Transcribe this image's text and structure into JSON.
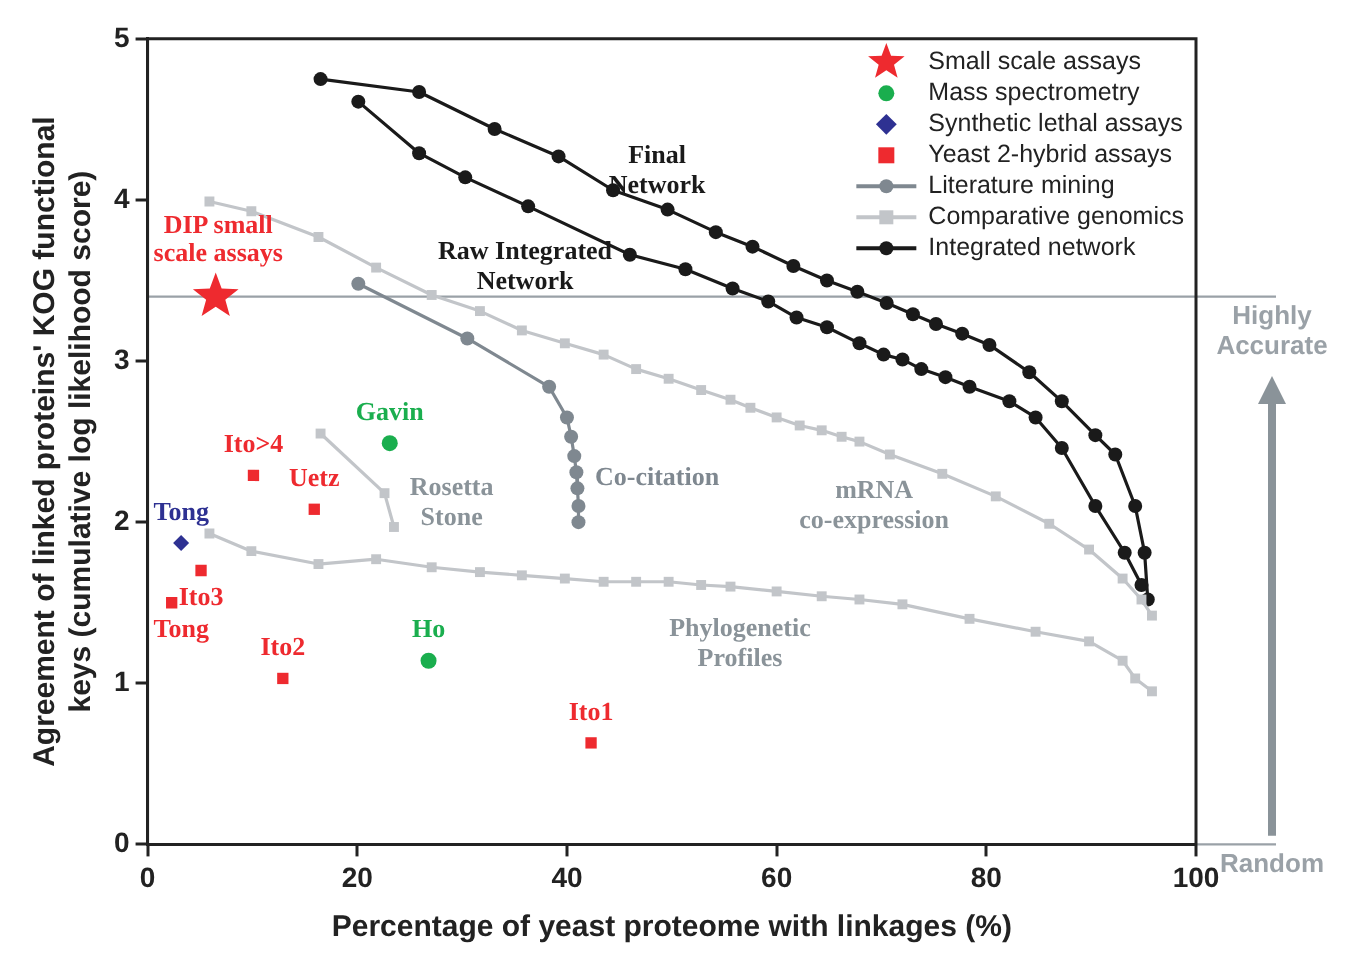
{
  "chart_data": {
    "type": "line",
    "xlabel": "Percentage of yeast proteome with linkages (%)",
    "ylabel": "Agreement of linked proteins' KOG functional\nkeys (cumulative log likelihood score)",
    "xlim": [
      0,
      100
    ],
    "xticks": [
      0,
      20,
      40,
      60,
      80,
      100
    ],
    "ylim": [
      0,
      5
    ],
    "yticks": [
      0,
      1,
      2,
      3,
      4,
      5
    ],
    "grid": false,
    "legend": "top right",
    "series": [
      {
        "name": "Small scale assays",
        "type": "scatter",
        "marker": "star",
        "color": "#ee2a2f",
        "x": [
          6.5
        ],
        "values": [
          3.4
        ],
        "value_labels": [
          "DIP small\nscale assays"
        ]
      },
      {
        "name": "Mass spectrometry",
        "type": "scatter",
        "marker": "circle",
        "color": "#1aae4e",
        "x": [
          23.1,
          26.8
        ],
        "values": [
          2.49,
          1.14
        ],
        "value_labels": [
          "Gavin",
          "Ho"
        ]
      },
      {
        "name": "Synthetic lethal assays",
        "type": "scatter",
        "marker": "diamond",
        "color": "#2e3192",
        "x": [
          3.2
        ],
        "values": [
          1.87
        ],
        "value_labels": [
          "Tong"
        ]
      },
      {
        "name": "Yeast 2-hybrid assays",
        "type": "scatter",
        "marker": "square",
        "color": "#ee2a2f",
        "x": [
          10.1,
          15.9,
          5.1,
          2.3,
          12.9,
          42.3
        ],
        "values": [
          2.29,
          2.08,
          1.7,
          1.5,
          1.03,
          0.63
        ],
        "value_labels": [
          "Ito>4",
          "Uetz",
          "Ito3",
          "Tong",
          "Ito2",
          "Ito1"
        ]
      },
      {
        "name": "Literature mining",
        "marker": "circle",
        "color": "#7f8890",
        "x": [
          20.1,
          30.5,
          38.3,
          40,
          40.4,
          40.7,
          40.9,
          41,
          41.1,
          41.1
        ],
        "values": [
          3.48,
          3.14,
          2.84,
          2.65,
          2.53,
          2.41,
          2.31,
          2.21,
          2.1,
          2.0
        ]
      },
      {
        "name": "Comparative genomics",
        "marker": "square",
        "color": "#c2c5c9",
        "x": [
          16.5,
          22.6,
          23.5
        ],
        "values": [
          2.55,
          2.18,
          1.97
        ]
      },
      {
        "marker": "square",
        "color": "#c2c5c9",
        "x": [
          5.9,
          9.9,
          16.3,
          21.8,
          27.1,
          31.7,
          35.7,
          39.8,
          43.5,
          46.6,
          49.7,
          52.8,
          55.6,
          57.5,
          60,
          62.2,
          64.3,
          66.2,
          67.9,
          70.8,
          75.8,
          80.9,
          86,
          89.8,
          93,
          94.8,
          95.8
        ],
        "values": [
          3.99,
          3.93,
          3.77,
          3.58,
          3.41,
          3.31,
          3.19,
          3.11,
          3.04,
          2.95,
          2.89,
          2.82,
          2.76,
          2.71,
          2.65,
          2.6,
          2.57,
          2.53,
          2.5,
          2.42,
          2.3,
          2.16,
          1.99,
          1.83,
          1.65,
          1.52,
          1.42
        ]
      },
      {
        "marker": "square",
        "color": "#c2c5c9",
        "x": [
          5.9,
          9.9,
          16.3,
          21.8,
          27.1,
          31.7,
          35.7,
          39.8,
          43.5,
          46.6,
          49.7,
          52.8,
          55.6,
          60,
          64.3,
          67.9,
          72,
          78.4,
          84.7,
          89.8,
          93,
          94.2,
          95.8
        ],
        "values": [
          1.93,
          1.82,
          1.74,
          1.77,
          1.72,
          1.69,
          1.67,
          1.65,
          1.63,
          1.63,
          1.63,
          1.61,
          1.6,
          1.57,
          1.54,
          1.52,
          1.49,
          1.4,
          1.32,
          1.26,
          1.14,
          1.03,
          0.95
        ]
      },
      {
        "name": "Integrated network",
        "marker": "circle",
        "color": "#1a1a1a",
        "x": [
          16.5,
          25.9,
          33.1,
          39.2,
          44.4,
          49.6,
          54.2,
          57.7,
          61.6,
          64.8,
          67.7,
          70.5,
          73,
          75.2,
          77.7,
          80.3,
          84.1,
          87.2,
          90.4,
          92.3,
          94.2,
          95.1,
          95.4
        ],
        "values": [
          4.75,
          4.67,
          4.44,
          4.27,
          4.06,
          3.94,
          3.8,
          3.71,
          3.59,
          3.5,
          3.43,
          3.36,
          3.29,
          3.23,
          3.17,
          3.1,
          2.93,
          2.75,
          2.54,
          2.42,
          2.1,
          1.81,
          1.52
        ]
      },
      {
        "marker": "circle",
        "color": "#1a1a1a",
        "x": [
          20.1,
          25.9,
          30.3,
          36.3,
          46,
          51.3,
          55.8,
          59.2,
          61.9,
          64.8,
          67.9,
          70.2,
          72,
          73.8,
          76.1,
          78.4,
          82.2,
          84.7,
          87.2,
          90.4,
          93.2,
          94.8
        ],
        "values": [
          4.61,
          4.29,
          4.14,
          3.96,
          3.66,
          3.57,
          3.45,
          3.37,
          3.27,
          3.21,
          3.11,
          3.04,
          3.01,
          2.95,
          2.9,
          2.84,
          2.75,
          2.65,
          2.46,
          2.1,
          1.81,
          1.61
        ]
      }
    ],
    "ref_lines": [
      {
        "axis": "y",
        "value": 3.4,
        "label": "Highly\nAccurate",
        "color": "#9aa1a7"
      },
      {
        "axis": "y",
        "value": 0,
        "label": "Random",
        "color": "#9aa1a7"
      }
    ],
    "annotations": [
      "Final\nNetwork",
      "Raw Integrated\nNetwork",
      "Rosetta\nStone",
      "Co-citation",
      "mRNA\nco-expression",
      "Phylogenetic\nProfiles"
    ]
  }
}
